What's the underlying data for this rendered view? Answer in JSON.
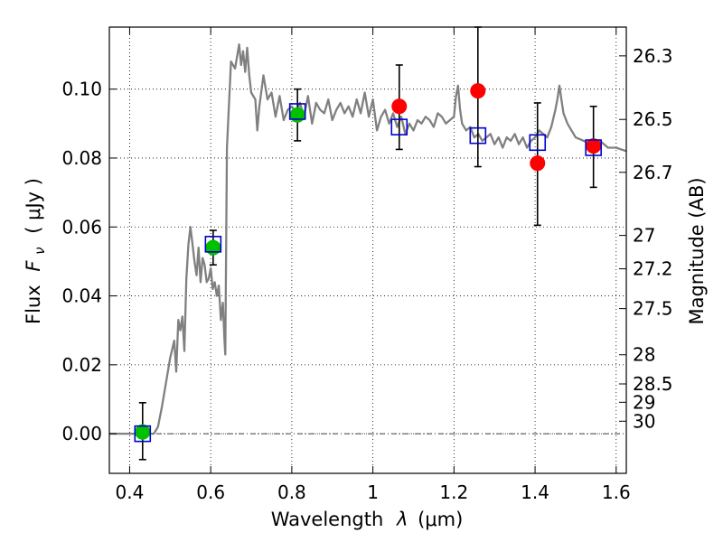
{
  "chart_data": {
    "type": "scatter",
    "xlabel_text": "Wavelength",
    "xlabel_symbol": "λ",
    "xlabel_unit": "(μm)",
    "ylabel_text": "Flux",
    "ylabel_symbol": "F",
    "ylabel_subscript": "ν",
    "ylabel_unit": "( μJy )",
    "y2label": "Magnitude (AB)",
    "xlim": [
      0.35,
      1.625
    ],
    "ylim": [
      -0.0115,
      0.118
    ],
    "grid": true,
    "x_ticks": [
      {
        "value": 0.4,
        "label": "0.4"
      },
      {
        "value": 0.6,
        "label": "0.6"
      },
      {
        "value": 0.8,
        "label": "0.8"
      },
      {
        "value": 1.0,
        "label": "1"
      },
      {
        "value": 1.2,
        "label": "1.2"
      },
      {
        "value": 1.4,
        "label": "1.4"
      },
      {
        "value": 1.6,
        "label": "1.6"
      }
    ],
    "y_ticks": [
      {
        "value": 0.0,
        "label": "0.00"
      },
      {
        "value": 0.02,
        "label": "0.02"
      },
      {
        "value": 0.04,
        "label": "0.04"
      },
      {
        "value": 0.06,
        "label": "0.06"
      },
      {
        "value": 0.08,
        "label": "0.08"
      },
      {
        "value": 0.1,
        "label": "0.10"
      }
    ],
    "mag_ticks": [
      {
        "mag": 26.3,
        "label": "26.3"
      },
      {
        "mag": 26.5,
        "label": "26.5"
      },
      {
        "mag": 26.7,
        "label": "26.7"
      },
      {
        "mag": 27.0,
        "label": "27"
      },
      {
        "mag": 27.2,
        "label": "27.2"
      },
      {
        "mag": 27.5,
        "label": "27.5"
      },
      {
        "mag": 28.0,
        "label": "28"
      },
      {
        "mag": 28.5,
        "label": "28.5"
      },
      {
        "mag": 29.0,
        "label": "29"
      },
      {
        "mag": 30.0,
        "label": "30"
      }
    ],
    "model_spectrum": {
      "color": "#808080",
      "x": [
        0.35,
        0.46,
        0.47,
        0.48,
        0.49,
        0.5,
        0.51,
        0.515,
        0.52,
        0.525,
        0.53,
        0.535,
        0.54,
        0.545,
        0.55,
        0.555,
        0.56,
        0.565,
        0.57,
        0.575,
        0.58,
        0.585,
        0.59,
        0.595,
        0.6,
        0.605,
        0.61,
        0.615,
        0.62,
        0.625,
        0.63,
        0.634,
        0.636,
        0.64,
        0.65,
        0.66,
        0.67,
        0.675,
        0.68,
        0.685,
        0.69,
        0.695,
        0.7,
        0.71,
        0.715,
        0.72,
        0.73,
        0.74,
        0.75,
        0.76,
        0.77,
        0.78,
        0.79,
        0.8,
        0.81,
        0.82,
        0.83,
        0.84,
        0.85,
        0.86,
        0.87,
        0.88,
        0.89,
        0.9,
        0.91,
        0.92,
        0.93,
        0.94,
        0.95,
        0.96,
        0.97,
        0.98,
        0.99,
        1.0,
        1.01,
        1.02,
        1.03,
        1.04,
        1.05,
        1.06,
        1.07,
        1.08,
        1.09,
        1.1,
        1.11,
        1.12,
        1.13,
        1.14,
        1.15,
        1.16,
        1.17,
        1.18,
        1.19,
        1.2,
        1.205,
        1.21,
        1.215,
        1.22,
        1.23,
        1.24,
        1.25,
        1.26,
        1.27,
        1.28,
        1.29,
        1.3,
        1.31,
        1.32,
        1.33,
        1.34,
        1.35,
        1.36,
        1.37,
        1.38,
        1.39,
        1.4,
        1.41,
        1.42,
        1.43,
        1.44,
        1.45,
        1.455,
        1.46,
        1.465,
        1.47,
        1.48,
        1.49,
        1.5,
        1.52,
        1.54,
        1.56,
        1.58,
        1.6,
        1.625
      ],
      "y": [
        0.0,
        0.0,
        0.002,
        0.008,
        0.015,
        0.022,
        0.027,
        0.018,
        0.033,
        0.03,
        0.034,
        0.024,
        0.045,
        0.055,
        0.06,
        0.055,
        0.05,
        0.046,
        0.054,
        0.044,
        0.051,
        0.049,
        0.044,
        0.045,
        0.048,
        0.042,
        0.044,
        0.04,
        0.043,
        0.033,
        0.038,
        0.027,
        0.023,
        0.083,
        0.108,
        0.106,
        0.113,
        0.107,
        0.111,
        0.105,
        0.112,
        0.104,
        0.099,
        0.097,
        0.088,
        0.095,
        0.104,
        0.097,
        0.099,
        0.092,
        0.098,
        0.091,
        0.094,
        0.095,
        0.093,
        0.096,
        0.092,
        0.098,
        0.09,
        0.096,
        0.094,
        0.093,
        0.097,
        0.091,
        0.094,
        0.096,
        0.093,
        0.095,
        0.092,
        0.097,
        0.093,
        0.099,
        0.092,
        0.097,
        0.088,
        0.092,
        0.094,
        0.09,
        0.093,
        0.089,
        0.092,
        0.087,
        0.09,
        0.088,
        0.091,
        0.09,
        0.092,
        0.091,
        0.089,
        0.093,
        0.092,
        0.09,
        0.091,
        0.092,
        0.098,
        0.101,
        0.094,
        0.09,
        0.088,
        0.089,
        0.086,
        0.087,
        0.085,
        0.086,
        0.087,
        0.084,
        0.086,
        0.083,
        0.086,
        0.085,
        0.087,
        0.084,
        0.086,
        0.083,
        0.085,
        0.086,
        0.088,
        0.087,
        0.086,
        0.089,
        0.094,
        0.097,
        0.101,
        0.097,
        0.093,
        0.09,
        0.088,
        0.086,
        0.085,
        0.084,
        0.085,
        0.083,
        0.083,
        0.082
      ]
    },
    "series": [
      {
        "marker": "circle",
        "color": "#00c000",
        "points": [
          {
            "x": 0.432,
            "y": 0.0005
          },
          {
            "x": 0.606,
            "y": 0.054
          },
          {
            "x": 0.814,
            "y": 0.0925
          }
        ]
      },
      {
        "marker": "circle",
        "color": "#ff0000",
        "points": [
          {
            "x": 1.065,
            "y": 0.095
          },
          {
            "x": 1.259,
            "y": 0.0995
          },
          {
            "x": 1.406,
            "y": 0.0785
          },
          {
            "x": 1.544,
            "y": 0.0835
          }
        ]
      },
      {
        "marker": "square",
        "color": "#0000cc",
        "points": [
          {
            "x": 0.432,
            "y": 0.0
          },
          {
            "x": 0.606,
            "y": 0.055
          },
          {
            "x": 0.814,
            "y": 0.0935
          },
          {
            "x": 1.065,
            "y": 0.089
          },
          {
            "x": 1.259,
            "y": 0.0865
          },
          {
            "x": 1.406,
            "y": 0.0845
          },
          {
            "x": 1.544,
            "y": 0.083
          }
        ]
      }
    ],
    "errorbars": [
      {
        "x": 0.432,
        "ylow": -0.0075,
        "yhigh": 0.009
      },
      {
        "x": 0.606,
        "ylow": 0.049,
        "yhigh": 0.059
      },
      {
        "x": 0.814,
        "ylow": 0.085,
        "yhigh": 0.1
      },
      {
        "x": 1.065,
        "ylow": 0.0825,
        "yhigh": 0.107
      },
      {
        "x": 1.259,
        "ylow": 0.0775,
        "yhigh": 0.118
      },
      {
        "x": 1.406,
        "ylow": 0.0605,
        "yhigh": 0.096
      },
      {
        "x": 1.544,
        "ylow": 0.0715,
        "yhigh": 0.095
      }
    ]
  }
}
